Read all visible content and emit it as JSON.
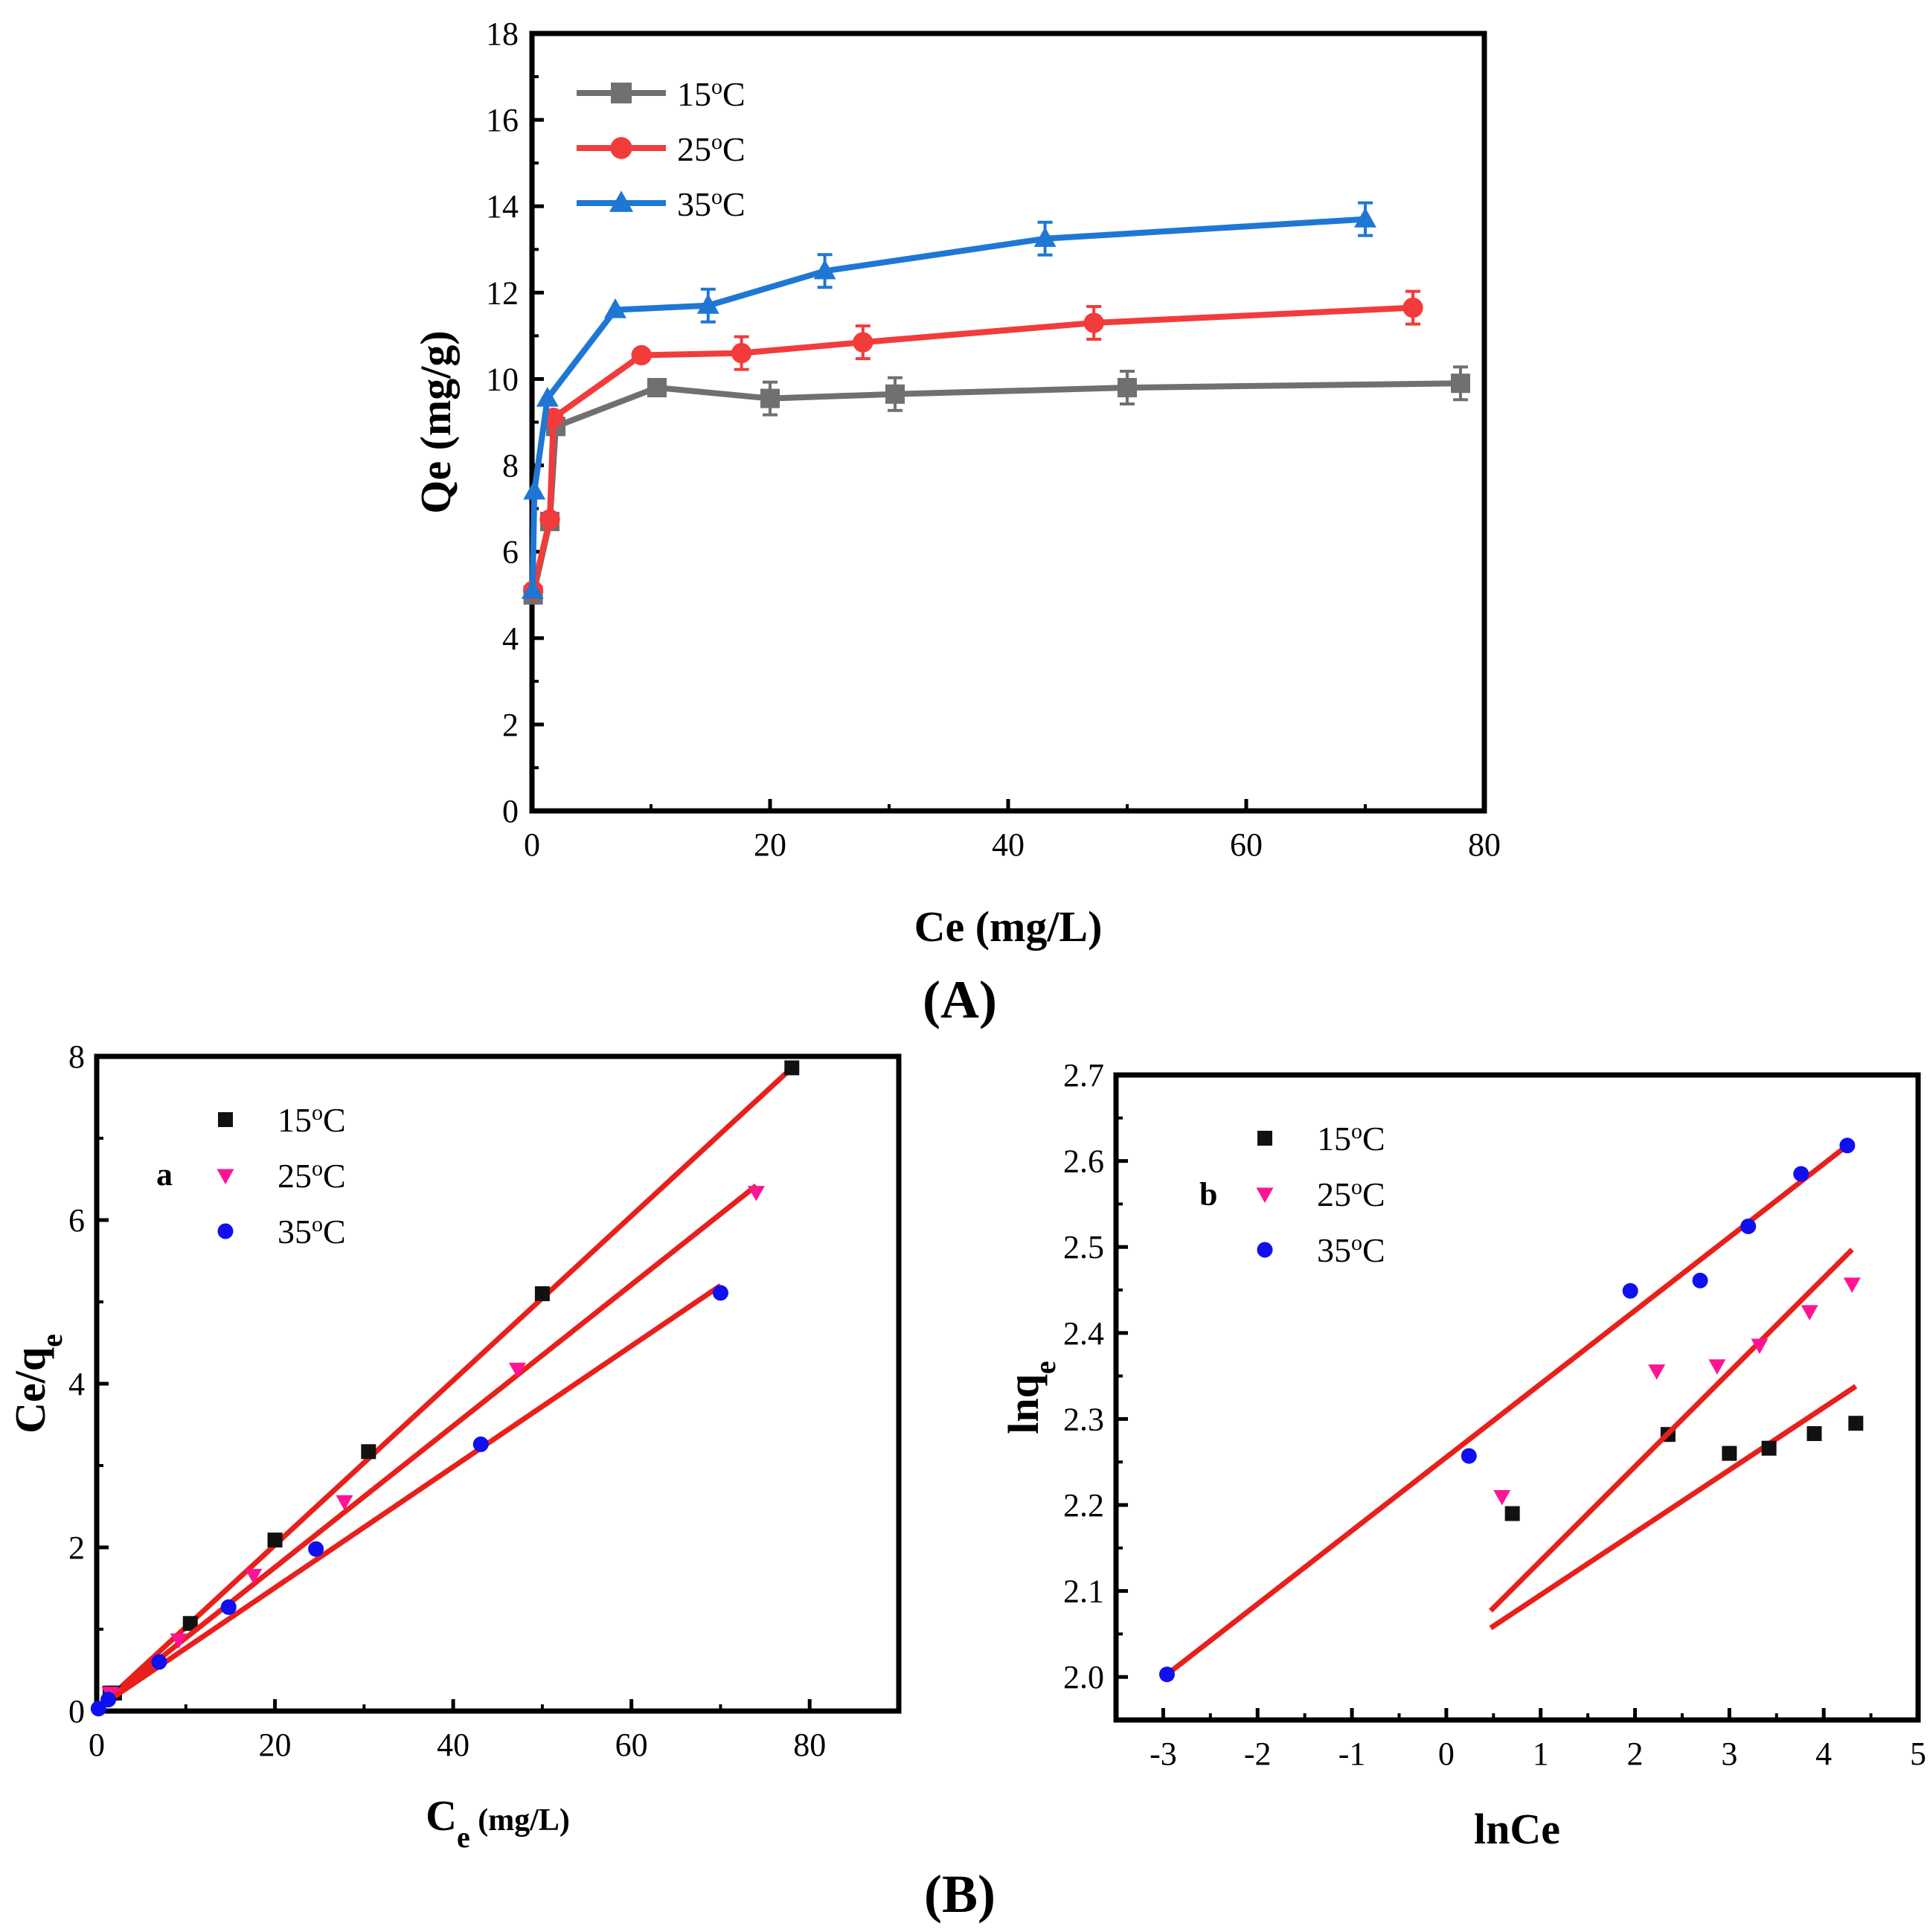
{
  "figure": {
    "label_A": "(A)",
    "label_B": "(B)"
  },
  "chart_data": [
    {
      "id": "A",
      "type": "line",
      "title": "",
      "xlabel": "Ce (mg/L)",
      "ylabel": "Qe (mg/g)",
      "xlim": [
        0,
        80
      ],
      "ylim": [
        0,
        18
      ],
      "xticks": [
        0,
        20,
        40,
        60,
        80
      ],
      "yticks": [
        0,
        2,
        4,
        6,
        8,
        10,
        12,
        14,
        16,
        18
      ],
      "legend_position": "top-left",
      "series": [
        {
          "name": "15°C",
          "name_base": "15",
          "name_sup": "o",
          "name_unit": "C",
          "color": "#707070",
          "marker": "square",
          "x": [
            0.1,
            1.5,
            2.0,
            10.5,
            20,
            30.5,
            50,
            78
          ],
          "y": [
            5.0,
            6.7,
            8.9,
            9.8,
            9.55,
            9.65,
            9.8,
            9.9
          ]
        },
        {
          "name": "25°C",
          "name_base": "25",
          "name_sup": "o",
          "name_unit": "C",
          "color": "#f23b3b",
          "marker": "circle",
          "x": [
            0.1,
            1.5,
            1.8,
            9.2,
            17.6,
            27.8,
            47.2,
            74
          ],
          "y": [
            5.1,
            6.75,
            9.1,
            10.55,
            10.6,
            10.85,
            11.3,
            11.65
          ]
        },
        {
          "name": "35°C",
          "name_base": "35",
          "name_sup": "o",
          "name_unit": "C",
          "color": "#1f77d4",
          "marker": "triangle",
          "x": [
            0.05,
            0.2,
            1.3,
            7.0,
            14.8,
            24.6,
            43.1,
            70
          ],
          "y": [
            5.1,
            7.4,
            9.55,
            11.6,
            11.7,
            12.5,
            13.25,
            13.7
          ]
        }
      ]
    },
    {
      "id": "a",
      "type": "scatter",
      "panel_letter": "a",
      "xlabel_base": "C",
      "xlabel_sub": "e",
      "xlabel_unit": " (mg/L)",
      "ylabel_base": "Ce/q",
      "ylabel_sub": "e",
      "xlim": [
        0,
        90
      ],
      "ylim": [
        0,
        8
      ],
      "xticks": [
        0,
        20,
        40,
        60,
        80
      ],
      "yticks": [
        0,
        2,
        4,
        6,
        8
      ],
      "legend_position": "top-left",
      "series": [
        {
          "name": "15°C",
          "name_base": "15",
          "name_sup": "o",
          "name_unit": "C",
          "color": "#111111",
          "marker": "square",
          "x": [
            1.5,
            2.0,
            10.5,
            20,
            30.5,
            50,
            78
          ],
          "y": [
            0.22,
            0.22,
            1.07,
            2.09,
            3.17,
            5.1,
            7.86
          ],
          "fit": {
            "x": [
              0,
              78
            ],
            "y": [
              0.02,
              7.86
            ]
          }
        },
        {
          "name": "25°C",
          "name_base": "25",
          "name_sup": "o",
          "name_unit": "C",
          "color": "#ff1493",
          "marker": "triangle-down",
          "x": [
            1.5,
            1.8,
            9.2,
            17.6,
            27.8,
            47.2,
            74
          ],
          "y": [
            0.22,
            0.2,
            0.87,
            1.66,
            2.56,
            4.18,
            6.34
          ],
          "fit": {
            "x": [
              0,
              74
            ],
            "y": [
              0.03,
              6.42
            ]
          }
        },
        {
          "name": "35°C",
          "name_base": "35",
          "name_sup": "o",
          "name_unit": "C",
          "color": "#1010ee",
          "marker": "circle",
          "x": [
            0.2,
            1.3,
            7.0,
            14.8,
            24.6,
            43.1,
            70
          ],
          "y": [
            0.03,
            0.14,
            0.6,
            1.27,
            1.98,
            3.26,
            5.11
          ],
          "fit": {
            "x": [
              0,
              70
            ],
            "y": [
              0.03,
              5.2
            ]
          }
        }
      ]
    },
    {
      "id": "b",
      "type": "scatter",
      "panel_letter": "b",
      "xlabel": "lnCe",
      "ylabel_base": "lnq",
      "ylabel_sub": "e",
      "xlim": [
        -3.5,
        5
      ],
      "ylim": [
        1.95,
        2.7
      ],
      "xticks": [
        -3,
        -2,
        -1,
        0,
        1,
        2,
        3,
        4,
        5
      ],
      "yticks": [
        "2.0",
        "2.1",
        "2.2",
        "2.3",
        "2.4",
        "2.5",
        "2.6",
        "2.7"
      ],
      "legend_position": "top-left",
      "series": [
        {
          "name": "15°C",
          "name_base": "15",
          "name_sup": "o",
          "name_unit": "C",
          "color": "#111111",
          "marker": "square",
          "x": [
            0.7,
            2.35,
            3.0,
            3.42,
            3.9,
            4.34
          ],
          "y": [
            2.19,
            2.282,
            2.26,
            2.266,
            2.283,
            2.295
          ],
          "fit": {
            "x": [
              0.47,
              4.34
            ],
            "y": [
              2.057,
              2.338
            ]
          }
        },
        {
          "name": "25°C",
          "name_base": "25",
          "name_sup": "o",
          "name_unit": "C",
          "color": "#ff1493",
          "marker": "triangle-down",
          "x": [
            0.59,
            2.23,
            2.87,
            3.32,
            3.85,
            4.3
          ],
          "y": [
            2.21,
            2.356,
            2.362,
            2.386,
            2.425,
            2.457
          ],
          "fit": {
            "x": [
              0.47,
              4.3
            ],
            "y": [
              2.077,
              2.497
            ]
          }
        },
        {
          "name": "35°C",
          "name_base": "35",
          "name_sup": "o",
          "name_unit": "C",
          "color": "#1010ee",
          "marker": "circle",
          "x": [
            -2.96,
            0.24,
            1.95,
            2.69,
            3.2,
            3.76,
            4.25
          ],
          "y": [
            2.003,
            2.257,
            2.449,
            2.461,
            2.524,
            2.585,
            2.618
          ],
          "fit": {
            "x": [
              -2.96,
              4.25
            ],
            "y": [
              2.003,
              2.618
            ]
          }
        }
      ]
    }
  ]
}
